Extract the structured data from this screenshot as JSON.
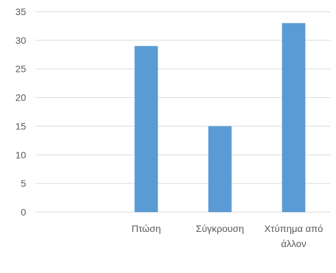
{
  "chart_data": {
    "type": "bar",
    "categories": [
      "",
      "Πτώση",
      "Σύγκρουση",
      "Χτύπημα από άλλον"
    ],
    "category_lines": [
      [
        ""
      ],
      [
        "Πτώση"
      ],
      [
        "Σύγκρουση"
      ],
      [
        "Χτύπημα από",
        "άλλον"
      ]
    ],
    "values": [
      null,
      29,
      15,
      33
    ],
    "title": "",
    "xlabel": "",
    "ylabel": "",
    "ylim": [
      0,
      35
    ],
    "yticks": [
      0,
      5,
      10,
      15,
      20,
      25,
      30,
      35
    ],
    "grid": true,
    "legend": "none",
    "colors": {
      "bar": "#5b9bd5",
      "grid": "#d9d9d9",
      "text": "#595959"
    }
  }
}
